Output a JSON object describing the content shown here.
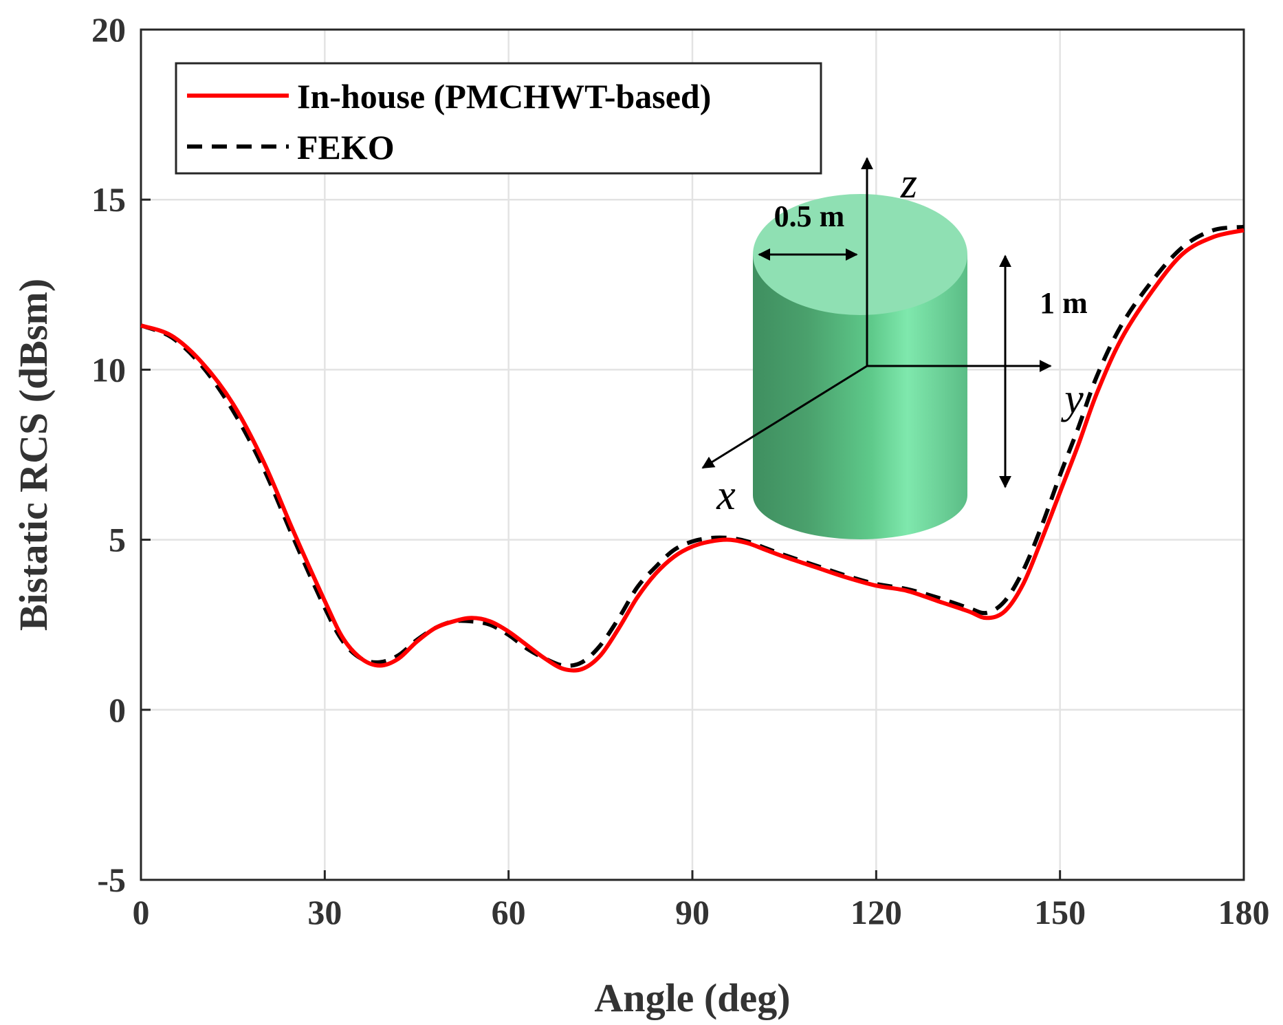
{
  "chart_data": {
    "type": "line",
    "title": "",
    "xlabel": "Angle (deg)",
    "ylabel": "Bistatic RCS (dBsm)",
    "xlim": [
      0,
      180
    ],
    "ylim": [
      -5,
      20
    ],
    "xticks": [
      "0",
      "30",
      "60",
      "90",
      "120",
      "150",
      "180"
    ],
    "yticks": [
      "-5",
      "0",
      "5",
      "10",
      "15",
      "20"
    ],
    "grid": true,
    "legend_position": "top-left",
    "series": [
      {
        "name": "In-house (PMCHWT-based)",
        "color": "#ff0000",
        "style": "solid",
        "x": [
          0,
          5,
          10,
          15,
          20,
          25,
          30,
          33,
          36,
          39,
          42,
          45,
          48,
          51,
          54,
          57,
          60,
          63,
          66,
          69,
          72,
          75,
          78,
          81,
          84,
          87,
          90,
          93,
          96,
          99,
          102,
          105,
          110,
          115,
          120,
          125,
          130,
          135,
          138,
          141,
          144,
          147,
          150,
          153,
          156,
          160,
          165,
          170,
          175,
          180
        ],
        "y": [
          11.3,
          11.0,
          10.2,
          9.0,
          7.3,
          5.2,
          3.2,
          2.1,
          1.5,
          1.3,
          1.5,
          2.0,
          2.4,
          2.6,
          2.7,
          2.6,
          2.3,
          1.9,
          1.5,
          1.2,
          1.2,
          1.6,
          2.4,
          3.3,
          4.0,
          4.5,
          4.8,
          4.95,
          5.0,
          4.9,
          4.7,
          4.5,
          4.2,
          3.9,
          3.65,
          3.5,
          3.2,
          2.9,
          2.7,
          2.9,
          3.7,
          5.0,
          6.4,
          7.8,
          9.3,
          10.9,
          12.3,
          13.4,
          13.9,
          14.1
        ]
      },
      {
        "name": "FEKO",
        "color": "#000000",
        "style": "dashed",
        "x": [
          0,
          5,
          10,
          15,
          20,
          25,
          30,
          33,
          36,
          39,
          42,
          45,
          48,
          51,
          54,
          57,
          60,
          63,
          66,
          69,
          72,
          75,
          78,
          81,
          84,
          87,
          90,
          93,
          96,
          99,
          102,
          105,
          110,
          115,
          120,
          125,
          130,
          135,
          138,
          141,
          144,
          147,
          150,
          153,
          156,
          160,
          165,
          170,
          175,
          180
        ],
        "y": [
          11.3,
          10.95,
          10.1,
          8.8,
          7.1,
          5.0,
          3.0,
          2.0,
          1.5,
          1.4,
          1.6,
          2.05,
          2.4,
          2.6,
          2.6,
          2.5,
          2.2,
          1.8,
          1.5,
          1.3,
          1.4,
          1.9,
          2.7,
          3.6,
          4.2,
          4.7,
          4.95,
          5.05,
          5.05,
          4.95,
          4.75,
          4.55,
          4.25,
          3.95,
          3.7,
          3.55,
          3.3,
          3.0,
          2.85,
          3.2,
          4.1,
          5.4,
          6.9,
          8.3,
          9.8,
          11.3,
          12.6,
          13.6,
          14.1,
          14.2
        ]
      }
    ],
    "inset": {
      "radius_label": "0.5 m",
      "height_label": "1 m",
      "axis_z": "z",
      "axis_y": "y",
      "axis_x": "x",
      "cylinder_color": "#6fd8a0"
    }
  }
}
